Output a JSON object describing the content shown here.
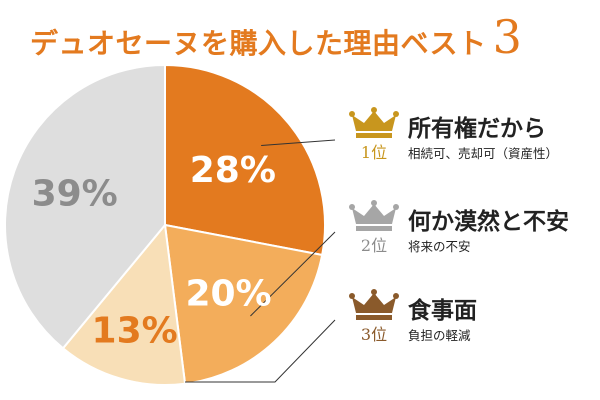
{
  "title": {
    "text": "デュオセーヌを購入した理由ベスト",
    "number": "3"
  },
  "colors": {
    "accent": "#e37a1f",
    "gold": "#c8961e",
    "silver": "#a6a6a6",
    "bronze": "#8a5a2b"
  },
  "ranking": [
    {
      "rank": "1位",
      "reason": "所有権だから",
      "detail": "相続可、売却可（資産性）",
      "crown": "gold-crown-icon"
    },
    {
      "rank": "2位",
      "reason": "何か漠然と不安",
      "detail": "将来の不安",
      "crown": "silver-crown-icon"
    },
    {
      "rank": "3位",
      "reason": "食事面",
      "detail": "負担の軽減",
      "crown": "bronze-crown-icon"
    }
  ],
  "chart_data": {
    "type": "pie",
    "title": "",
    "slices": [
      {
        "label": "所有権だから",
        "value": 28,
        "display": "28%",
        "color": "#e37a1f"
      },
      {
        "label": "何か漠然と不安",
        "value": 20,
        "display": "20%",
        "color": "#f3ad5b"
      },
      {
        "label": "食事面",
        "value": 13,
        "display": "13%",
        "color": "#f8dfb7"
      },
      {
        "label": "",
        "value": 39,
        "display": "39%",
        "color": "#dedede"
      }
    ]
  }
}
